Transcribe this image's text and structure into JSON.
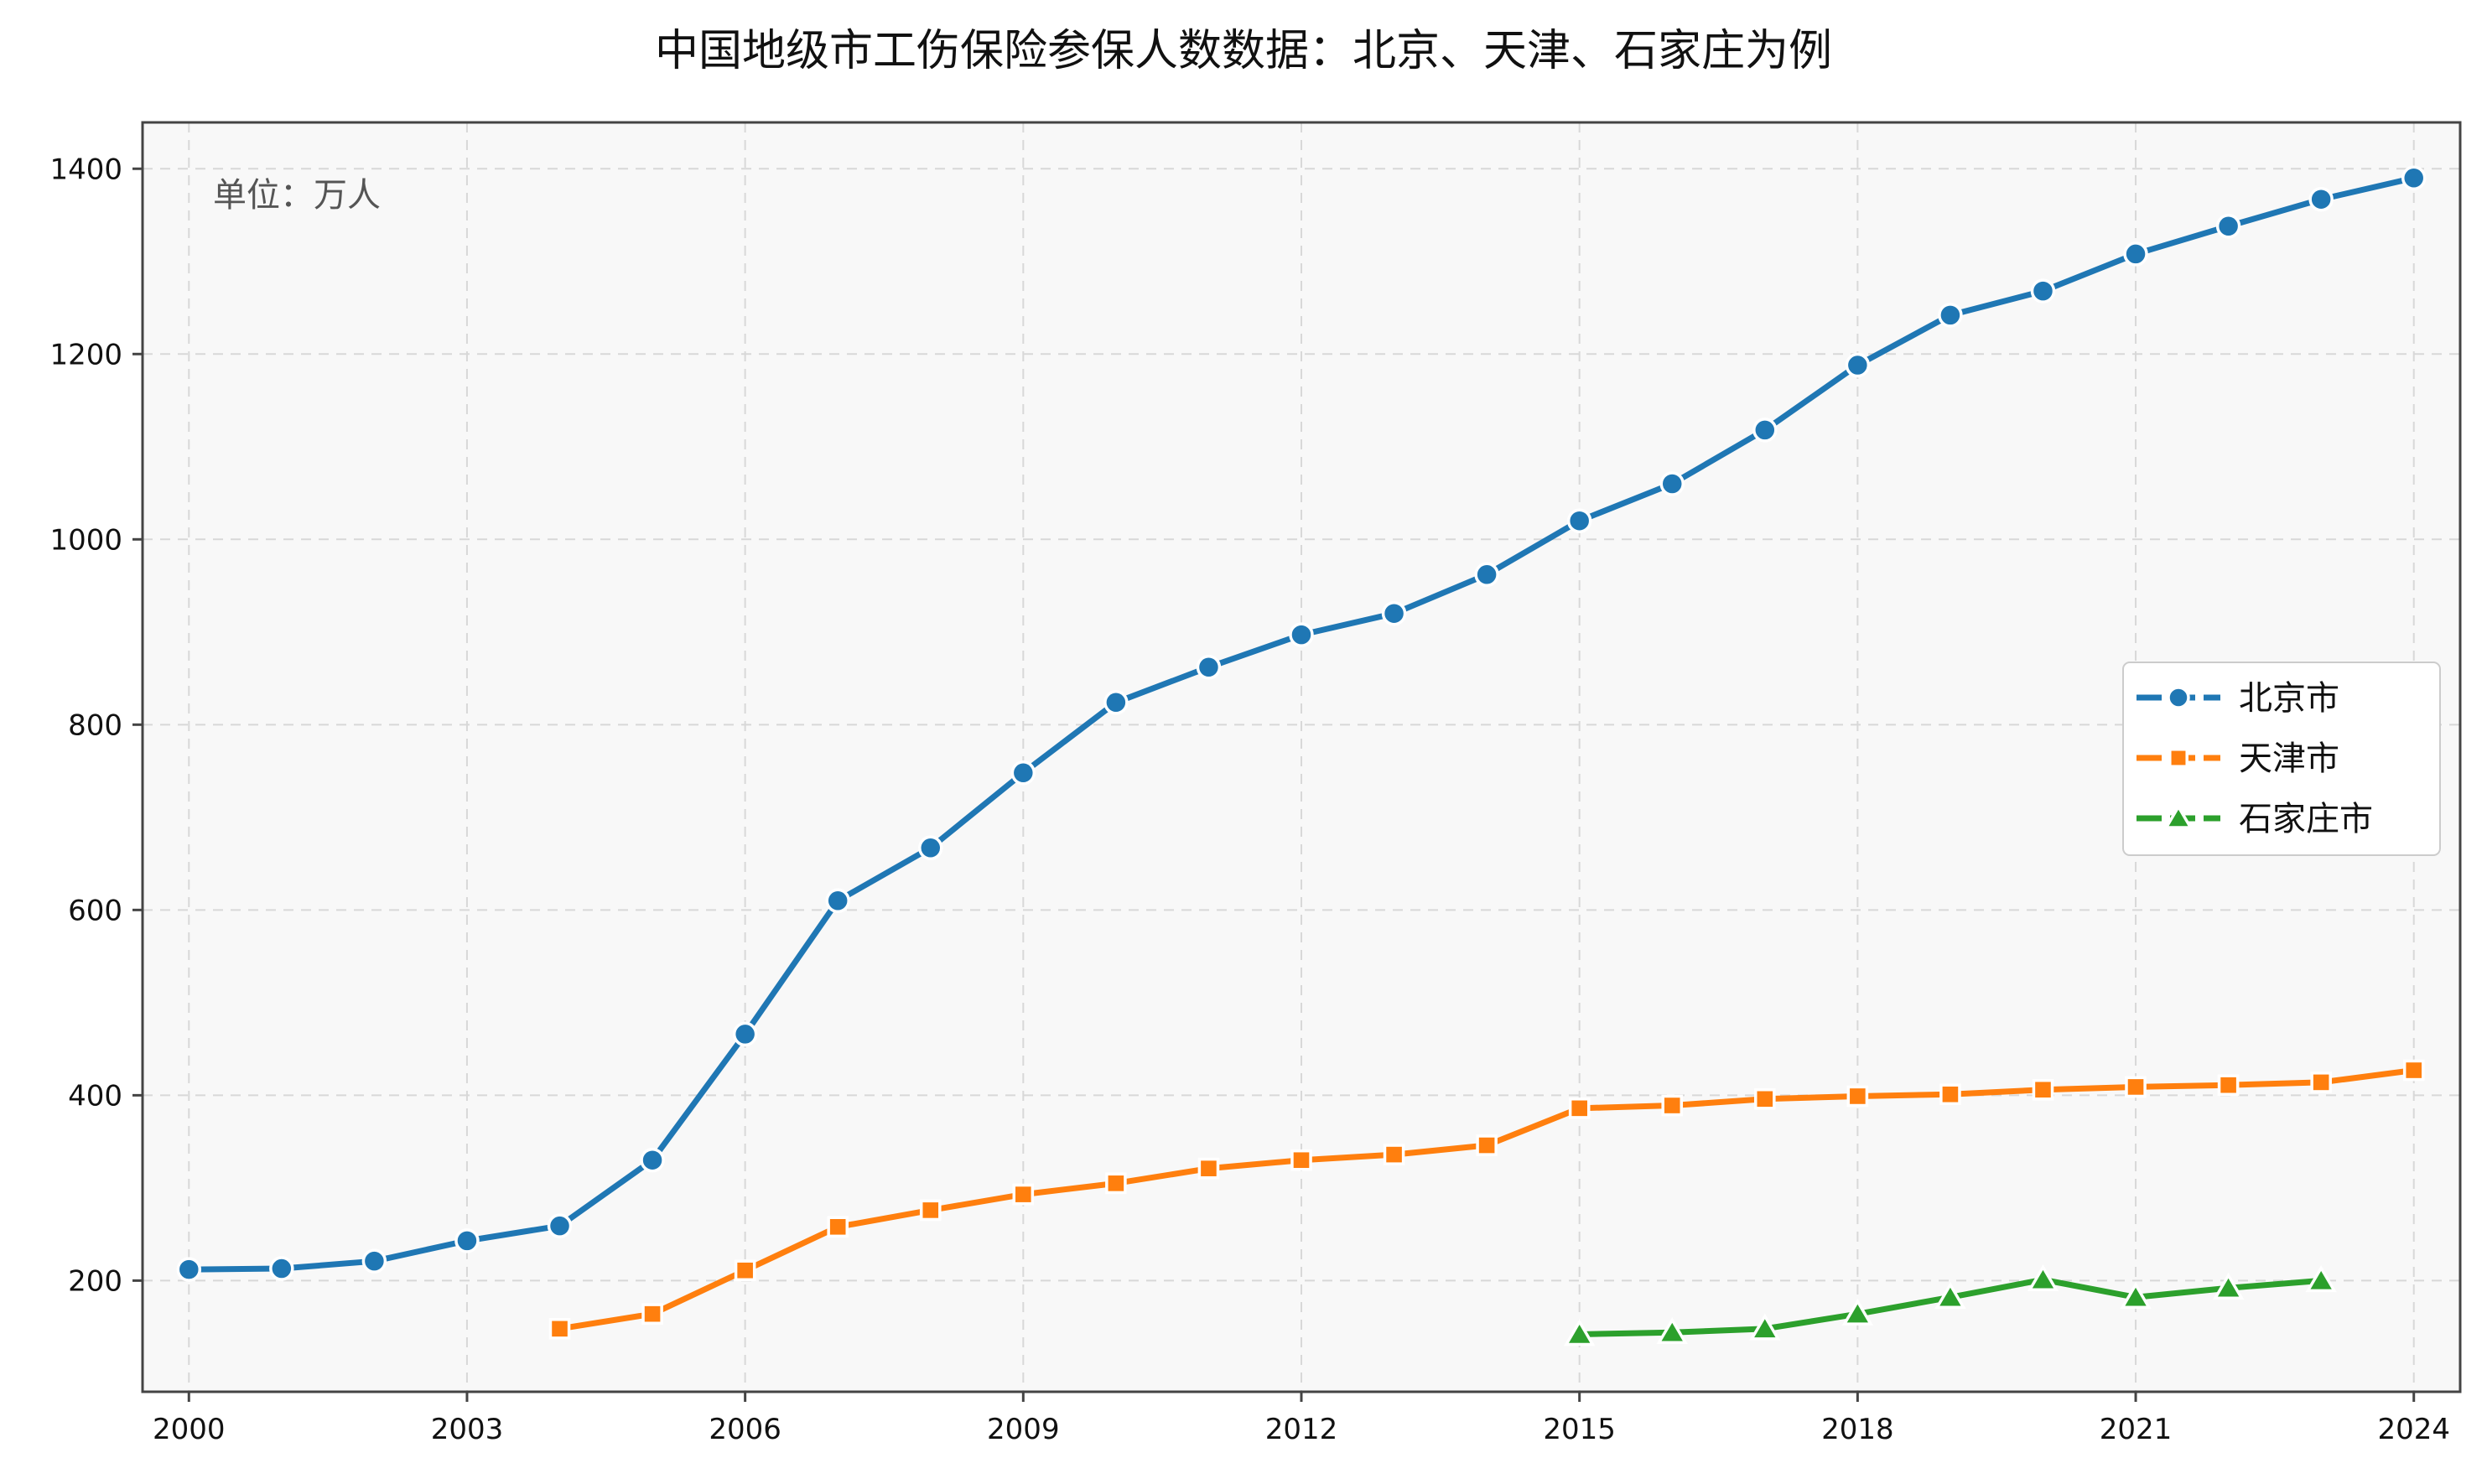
{
  "chart_data": {
    "type": "line",
    "title": "中国地级市工伤保险参保人数数据：北京、天津、石家庄为例",
    "annotation": "单位：万人",
    "xlabel": "",
    "ylabel": "",
    "xlim": [
      1999.5,
      2024.5
    ],
    "ylim": [
      80,
      1450
    ],
    "xticks": [
      2000,
      2003,
      2006,
      2009,
      2012,
      2015,
      2018,
      2021,
      2024
    ],
    "yticks": [
      200,
      400,
      600,
      800,
      1000,
      1200,
      1400
    ],
    "grid": true,
    "legend_position": "center-right",
    "series": [
      {
        "name": "北京市",
        "color": "#1f77b4",
        "marker": "circle",
        "x": [
          2000,
          2001,
          2002,
          2003,
          2004,
          2005,
          2006,
          2007,
          2008,
          2009,
          2010,
          2011,
          2012,
          2013,
          2014,
          2015,
          2016,
          2017,
          2018,
          2019,
          2020,
          2021,
          2022,
          2023,
          2024
        ],
        "y": [
          212,
          213,
          221,
          243,
          259,
          330,
          466,
          610,
          667,
          748,
          824,
          862,
          897,
          920,
          962,
          1020,
          1060,
          1118,
          1188,
          1242,
          1268,
          1308,
          1338,
          1367,
          1390
        ]
      },
      {
        "name": "天津市",
        "color": "#ff7f0e",
        "marker": "square",
        "x": [
          2004,
          2005,
          2006,
          2007,
          2008,
          2009,
          2010,
          2011,
          2012,
          2013,
          2014,
          2015,
          2016,
          2017,
          2018,
          2019,
          2020,
          2021,
          2022,
          2023,
          2024
        ],
        "y": [
          148,
          164,
          211,
          258,
          276,
          293,
          305,
          321,
          330,
          336,
          346,
          386,
          389,
          396,
          399,
          401,
          406,
          409,
          411,
          414,
          427
        ]
      },
      {
        "name": "石家庄市",
        "color": "#2ca02c",
        "marker": "triangle",
        "x": [
          2015,
          2016,
          2017,
          2018,
          2019,
          2020,
          2021,
          2022,
          2023
        ],
        "y": [
          142,
          144,
          148,
          164,
          182,
          201,
          182,
          192,
          200
        ]
      }
    ]
  }
}
